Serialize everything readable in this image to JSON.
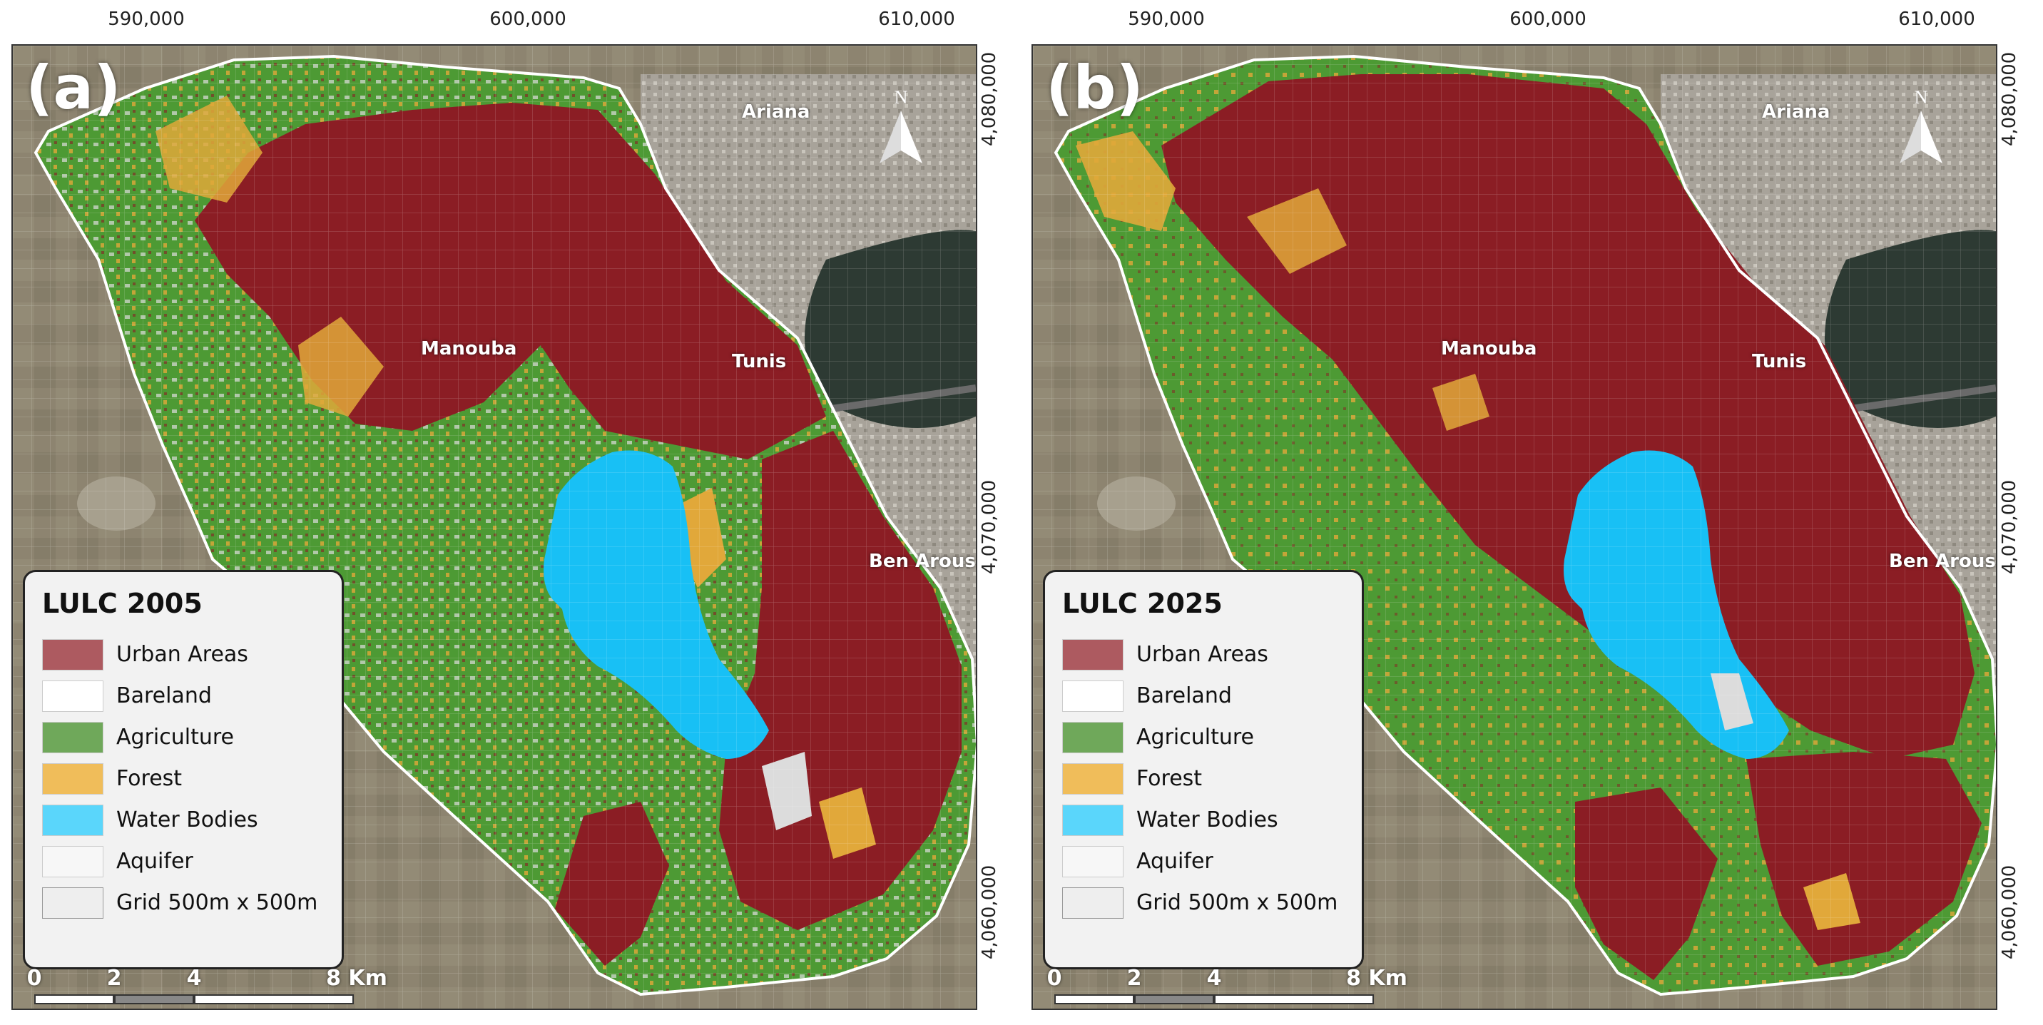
{
  "x_ticks": [
    "590,000",
    "600,000",
    "610,000"
  ],
  "y_ticks": [
    "4,080,000",
    "4,070,000",
    "4,060,000"
  ],
  "places": [
    "Ariana",
    "Manouba",
    "Tunis",
    "Ben Arous"
  ],
  "legend_items": [
    "Urban Areas",
    "Bareland",
    "Agriculture",
    "Forest",
    "Water Bodies",
    "Aquifer",
    "Grid 500m x 500m"
  ],
  "colors": {
    "urban": "#8b1d24",
    "bareland": "#ffffff",
    "agriculture": "#4d9a34",
    "forest": "#e1a83a",
    "water": "#18c0f5",
    "aquifer": "#f2f2f2",
    "grid": "#f2f2f2",
    "swatch_urban": "#ad5a60",
    "swatch_agri": "#6fa85a",
    "swatch_forest": "#f0bd5a",
    "swatch_water": "#5ad6fb",
    "satellite": "#8d8470"
  },
  "scale": {
    "labels": [
      "0",
      "2",
      "4",
      "8 Km"
    ]
  },
  "panels": [
    {
      "label": "(a)",
      "legend_title": "LULC 2005"
    },
    {
      "label": "(b)",
      "legend_title": "LULC 2025"
    }
  ]
}
